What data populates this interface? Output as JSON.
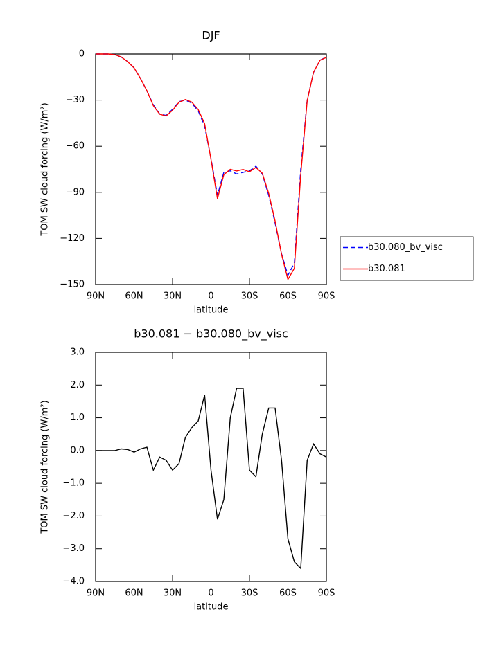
{
  "chart_data": [
    {
      "type": "line",
      "title": "DJF",
      "xlabel": "latitude",
      "ylabel": "TOM SW cloud forcing (W/m²)",
      "x": [
        90,
        85,
        80,
        75,
        70,
        65,
        60,
        55,
        50,
        45,
        40,
        35,
        30,
        25,
        20,
        15,
        10,
        5,
        0,
        -5,
        -10,
        -15,
        -20,
        -25,
        -30,
        -35,
        -40,
        -45,
        -50,
        -55,
        -60,
        -65,
        -70,
        -75,
        -80,
        -85,
        -90
      ],
      "xlim": [
        90,
        -90
      ],
      "xticks": [
        {
          "value": 90,
          "label": "90N"
        },
        {
          "value": 60,
          "label": "60N"
        },
        {
          "value": 30,
          "label": "30N"
        },
        0,
        {
          "value": -30,
          "label": "30S"
        },
        {
          "value": -60,
          "label": "60S"
        },
        {
          "value": -90,
          "label": "90S"
        }
      ],
      "ylim": [
        -150,
        0
      ],
      "yticks": [
        0,
        {
          "value": -30,
          "label": "−30"
        },
        {
          "value": -60,
          "label": "−60"
        },
        {
          "value": -90,
          "label": "−90"
        },
        {
          "value": -120,
          "label": "−120"
        },
        {
          "value": -150,
          "label": "−150"
        }
      ],
      "legend": "right",
      "series": [
        {
          "name": "b30.080_bv_visc",
          "color": "#0000ff",
          "linestyle": "dashed",
          "values": [
            0,
            0,
            0,
            -0.5,
            -2,
            -5,
            -9,
            -16,
            -24,
            -33,
            -39,
            -40,
            -36,
            -31,
            -30,
            -32,
            -37,
            -47,
            -68,
            -92,
            -77,
            -76,
            -78,
            -77,
            -76,
            -73,
            -78,
            -92,
            -110,
            -130,
            -144,
            -136,
            -75,
            -30,
            -12,
            -4,
            -2
          ]
        },
        {
          "name": "b30.081",
          "color": "#ff0000",
          "linestyle": "solid",
          "values": [
            0,
            0,
            0,
            -0.5,
            -1.9,
            -5,
            -9,
            -16,
            -23.9,
            -33.6,
            -39.2,
            -40.3,
            -36.6,
            -31.4,
            -29.6,
            -31.3,
            -36.1,
            -45.3,
            -68.6,
            -94.1,
            -78.5,
            -75,
            -76.1,
            -75.1,
            -76.6,
            -73.8,
            -77.5,
            -90.7,
            -108.7,
            -130.3,
            -146.7,
            -139.4,
            -78.6,
            -30.3,
            -11.8,
            -4.1,
            -2.2
          ]
        }
      ]
    },
    {
      "type": "line",
      "title": "b30.081 − b30.080_bv_visc",
      "xlabel": "latitude",
      "ylabel": "TOM SW cloud forcing (W/m²)",
      "x": [
        90,
        85,
        80,
        75,
        70,
        65,
        60,
        55,
        50,
        45,
        40,
        35,
        30,
        25,
        20,
        15,
        10,
        5,
        0,
        -5,
        -10,
        -15,
        -20,
        -25,
        -30,
        -35,
        -40,
        -45,
        -50,
        -55,
        -60,
        -65,
        -70,
        -75,
        -80,
        -85,
        -90
      ],
      "xlim": [
        90,
        -90
      ],
      "xticks": [
        {
          "value": 90,
          "label": "90N"
        },
        {
          "value": 60,
          "label": "60N"
        },
        {
          "value": 30,
          "label": "30N"
        },
        0,
        {
          "value": -30,
          "label": "30S"
        },
        {
          "value": -60,
          "label": "60S"
        },
        {
          "value": -90,
          "label": "90S"
        }
      ],
      "ylim": [
        -4,
        3
      ],
      "yticks": [
        {
          "value": 3,
          "label": "3.0"
        },
        {
          "value": 2,
          "label": "2.0"
        },
        {
          "value": 1,
          "label": "1.0"
        },
        {
          "value": 0,
          "label": "0.0"
        },
        {
          "value": -1,
          "label": "−1.0"
        },
        {
          "value": -2,
          "label": "−2.0"
        },
        {
          "value": -3,
          "label": "−3.0"
        },
        {
          "value": -4,
          "label": "−4.0"
        }
      ],
      "series": [
        {
          "color": "#000000",
          "linestyle": "solid",
          "values": [
            0,
            0,
            0,
            0,
            0.05,
            0.03,
            -0.05,
            0.05,
            0.1,
            -0.6,
            -0.2,
            -0.3,
            -0.6,
            -0.4,
            0.4,
            0.7,
            0.9,
            1.7,
            -0.6,
            -2.1,
            -1.5,
            1.0,
            1.9,
            1.9,
            -0.6,
            -0.8,
            0.5,
            1.3,
            1.3,
            -0.3,
            -2.7,
            -3.4,
            -3.6,
            -0.3,
            0.2,
            -0.1,
            -0.2
          ]
        }
      ]
    }
  ]
}
